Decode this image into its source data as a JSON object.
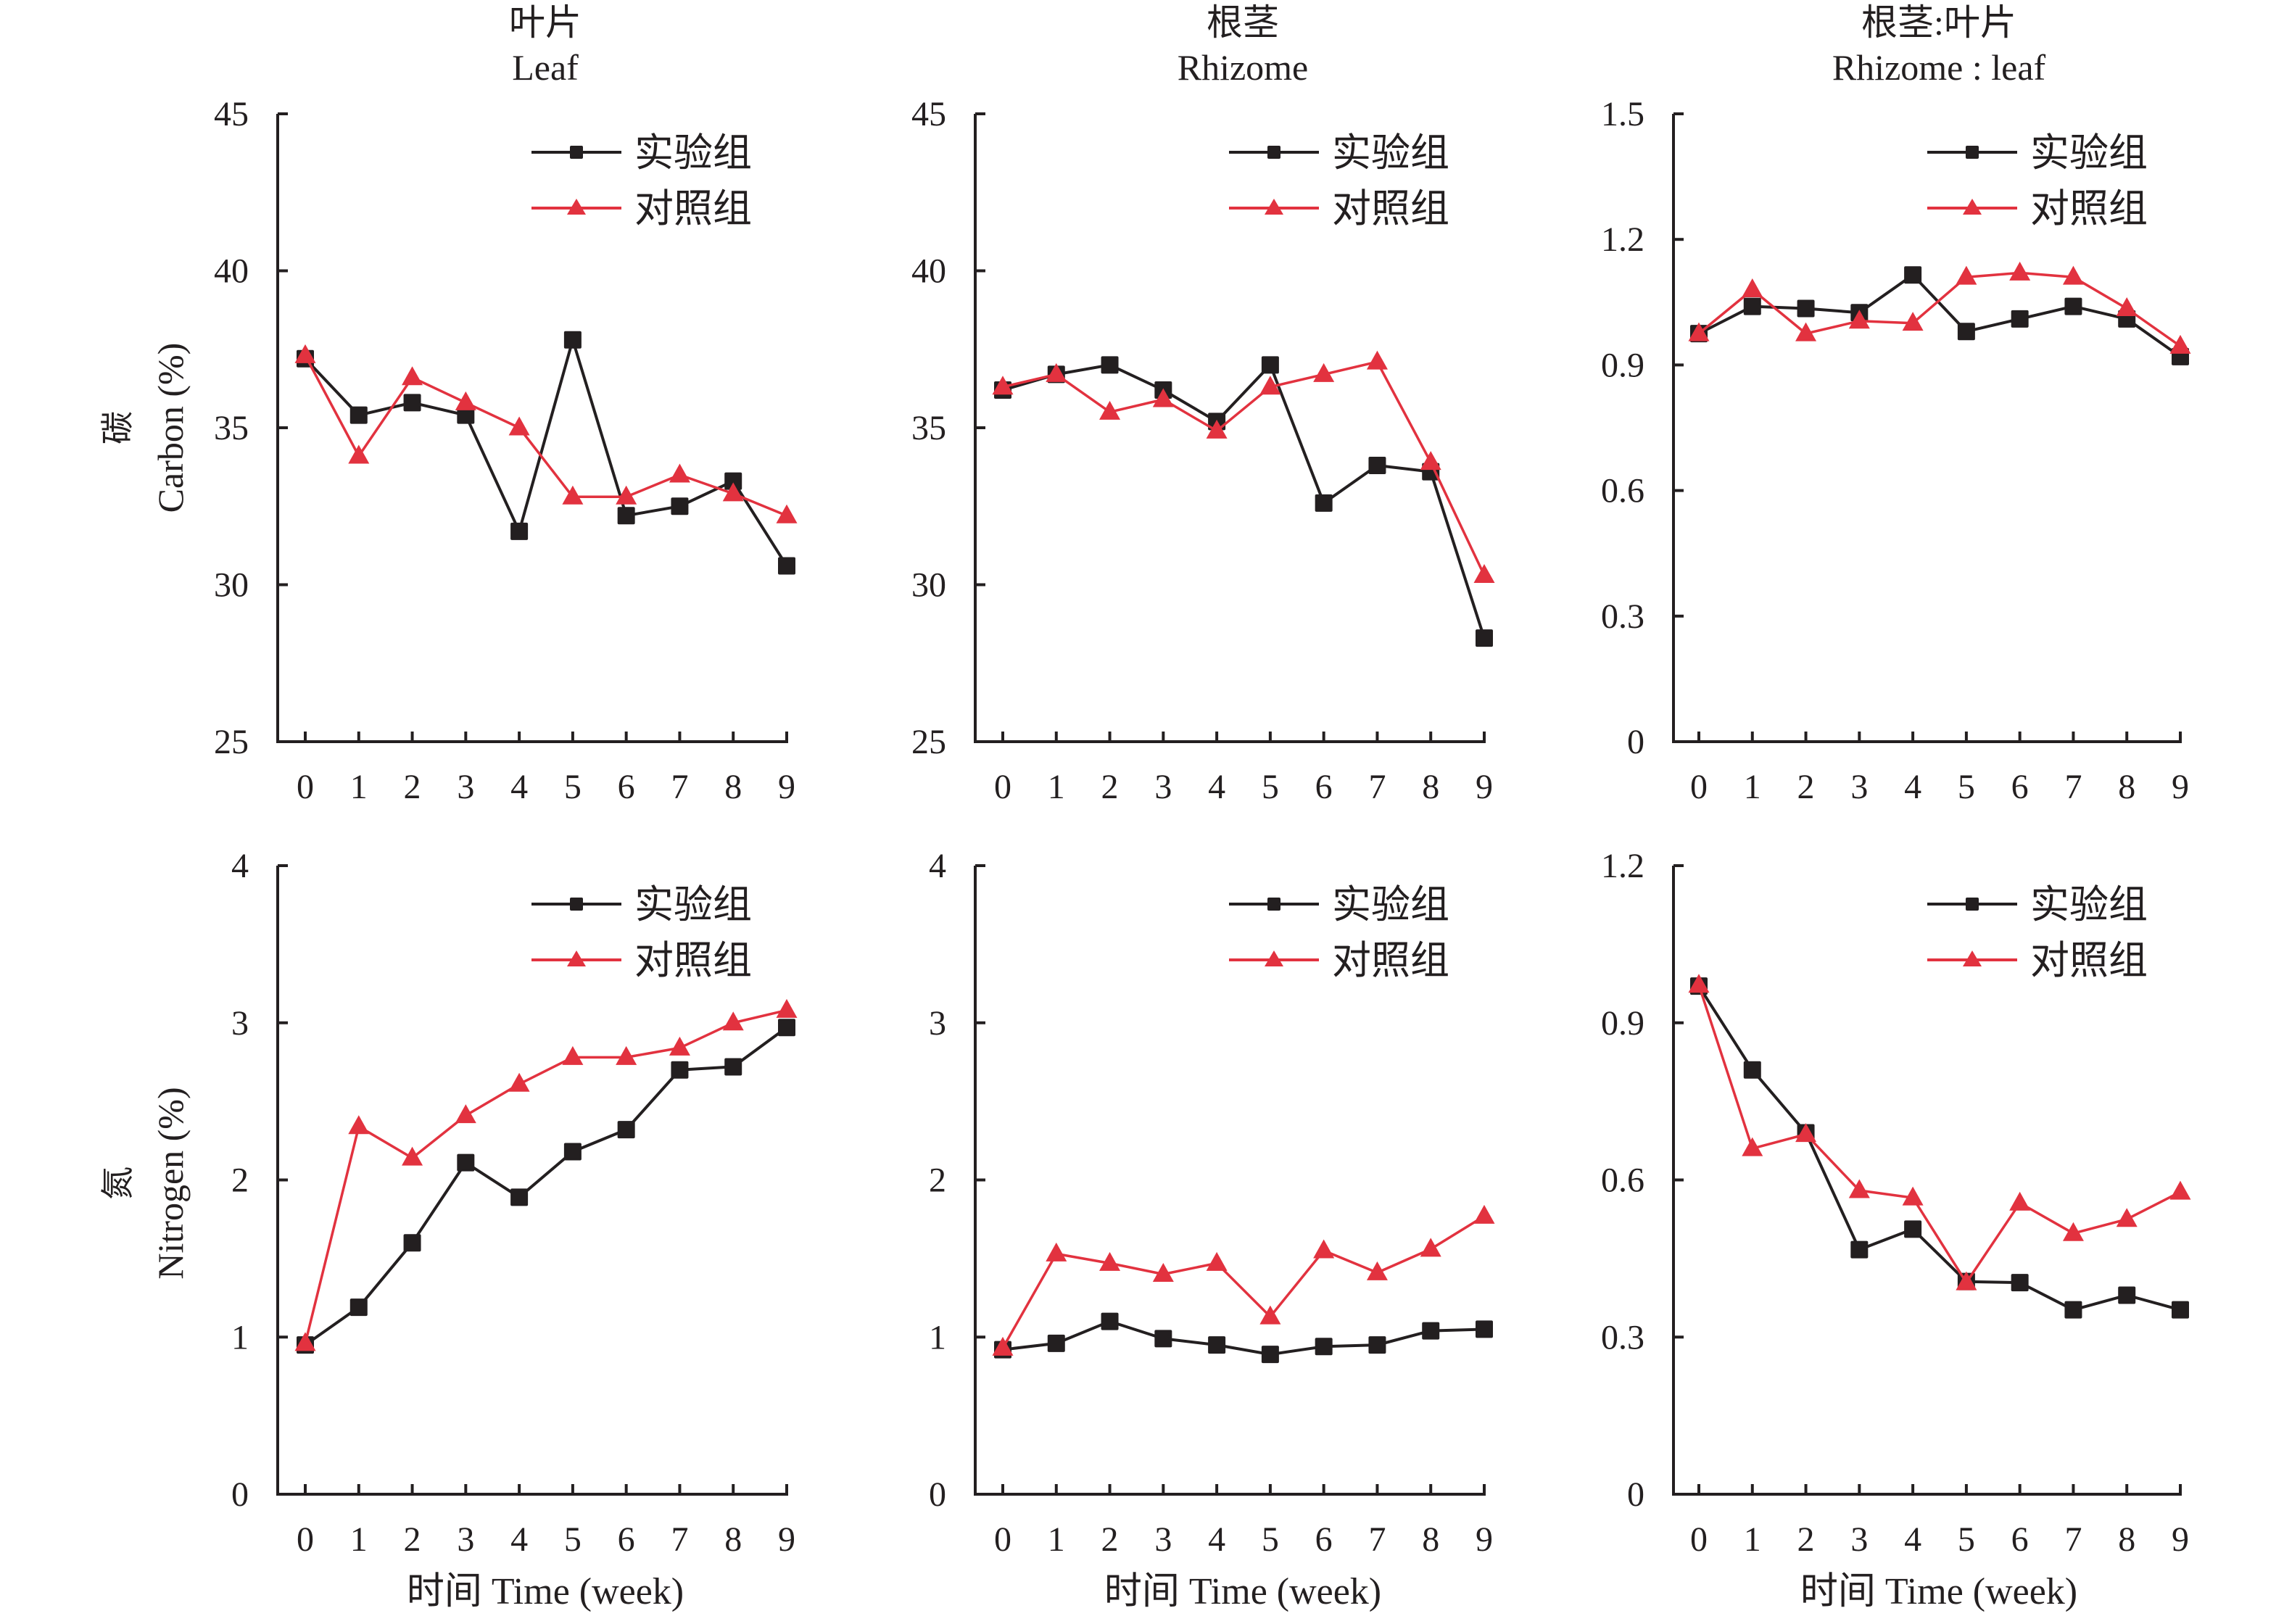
{
  "figure": {
    "row_titles": [
      {
        "zh": "碳",
        "en": "Carbon (%)"
      },
      {
        "zh": "氮",
        "en": "Nitrogen (%)"
      }
    ],
    "column_titles": [
      {
        "zh": "叶片",
        "en": "Leaf"
      },
      {
        "zh": "根茎",
        "en": "Rhizome"
      },
      {
        "zh": "根茎:叶片",
        "en": "Rhizome : leaf"
      }
    ],
    "xaxis_title": "时间 Time (week)",
    "colors": {
      "experimental": "#231f20",
      "control": "#e2323f",
      "axis": "#231f20"
    }
  },
  "chart_data": [
    {
      "type": "line",
      "title": "叶片 Leaf",
      "ylabel": "碳 Carbon (%)",
      "xlabel": "",
      "x": [
        0,
        1,
        2,
        3,
        4,
        5,
        6,
        7,
        8,
        9
      ],
      "x_tick_labels": [
        "0",
        "1",
        "2",
        "3",
        "4",
        "5",
        "6",
        "7",
        "8",
        "9"
      ],
      "ylim": [
        25,
        45
      ],
      "y_ticks": [
        25,
        30,
        35,
        40,
        45
      ],
      "y_tick_labels": [
        "25",
        "30",
        "35",
        "40",
        "45"
      ],
      "legend_position": "top-right",
      "grid": false,
      "series": [
        {
          "name": "实验组",
          "marker": "square",
          "values": [
            37.2,
            35.4,
            35.8,
            35.4,
            31.7,
            37.8,
            32.2,
            32.5,
            33.3,
            30.6
          ]
        },
        {
          "name": "对照组",
          "marker": "triangle",
          "values": [
            37.3,
            34.1,
            36.6,
            35.8,
            35.0,
            32.8,
            32.8,
            33.5,
            32.9,
            32.2
          ]
        }
      ]
    },
    {
      "type": "line",
      "title": "根茎 Rhizome",
      "ylabel": "",
      "xlabel": "",
      "x": [
        0,
        1,
        2,
        3,
        4,
        5,
        6,
        7,
        8,
        9
      ],
      "x_tick_labels": [
        "0",
        "1",
        "2",
        "3",
        "4",
        "5",
        "6",
        "7",
        "8",
        "9"
      ],
      "ylim": [
        25,
        45
      ],
      "y_ticks": [
        25,
        30,
        35,
        40,
        45
      ],
      "y_tick_labels": [
        "25",
        "30",
        "35",
        "40",
        "45"
      ],
      "legend_position": "top-right",
      "grid": false,
      "series": [
        {
          "name": "实验组",
          "marker": "square",
          "values": [
            36.2,
            36.7,
            37.0,
            36.2,
            35.2,
            37.0,
            32.6,
            33.8,
            33.6,
            28.3
          ]
        },
        {
          "name": "对照组",
          "marker": "triangle",
          "values": [
            36.3,
            36.7,
            35.5,
            35.9,
            34.9,
            36.3,
            36.7,
            37.1,
            33.9,
            30.3
          ]
        }
      ]
    },
    {
      "type": "line",
      "title": "根茎:叶片 Rhizome : leaf",
      "ylabel": "",
      "xlabel": "",
      "x": [
        0,
        1,
        2,
        3,
        4,
        5,
        6,
        7,
        8,
        9
      ],
      "x_tick_labels": [
        "0",
        "1",
        "2",
        "3",
        "4",
        "5",
        "6",
        "7",
        "8",
        "9"
      ],
      "ylim": [
        0,
        1.5
      ],
      "y_ticks": [
        0,
        0.3,
        0.6,
        0.9,
        1.2,
        1.5
      ],
      "y_tick_labels": [
        "0",
        "0.3",
        "0.6",
        "0.9",
        "1.2",
        "1.5"
      ],
      "legend_position": "top-right",
      "grid": false,
      "series": [
        {
          "name": "实验组",
          "marker": "square",
          "values": [
            0.975,
            1.04,
            1.035,
            1.025,
            1.115,
            0.98,
            1.01,
            1.04,
            1.01,
            0.92
          ]
        },
        {
          "name": "对照组",
          "marker": "triangle",
          "values": [
            0.975,
            1.08,
            0.975,
            1.005,
            1.0,
            1.11,
            1.12,
            1.11,
            1.035,
            0.945
          ]
        }
      ]
    },
    {
      "type": "line",
      "title": "",
      "ylabel": "氮 Nitrogen (%)",
      "xlabel": "时间 Time (week)",
      "x": [
        0,
        1,
        2,
        3,
        4,
        5,
        6,
        7,
        8,
        9
      ],
      "x_tick_labels": [
        "0",
        "1",
        "2",
        "3",
        "4",
        "5",
        "6",
        "7",
        "8",
        "9"
      ],
      "ylim": [
        0,
        4
      ],
      "y_ticks": [
        0,
        1,
        2,
        3,
        4
      ],
      "y_tick_labels": [
        "0",
        "1",
        "2",
        "3",
        "4"
      ],
      "legend_position": "top-right",
      "grid": false,
      "series": [
        {
          "name": "实验组",
          "marker": "square",
          "values": [
            0.95,
            1.19,
            1.6,
            2.11,
            1.89,
            2.18,
            2.32,
            2.7,
            2.72,
            2.97
          ]
        },
        {
          "name": "对照组",
          "marker": "triangle",
          "values": [
            0.96,
            2.34,
            2.14,
            2.41,
            2.61,
            2.78,
            2.78,
            2.84,
            3.0,
            3.08
          ]
        }
      ]
    },
    {
      "type": "line",
      "title": "",
      "ylabel": "",
      "xlabel": "时间 Time (week)",
      "x": [
        0,
        1,
        2,
        3,
        4,
        5,
        6,
        7,
        8,
        9
      ],
      "x_tick_labels": [
        "0",
        "1",
        "2",
        "3",
        "4",
        "5",
        "6",
        "7",
        "8",
        "9"
      ],
      "ylim": [
        0,
        4
      ],
      "y_ticks": [
        0,
        1,
        2,
        3,
        4
      ],
      "y_tick_labels": [
        "0",
        "1",
        "2",
        "3",
        "4"
      ],
      "legend_position": "top-right",
      "grid": false,
      "series": [
        {
          "name": "实验组",
          "marker": "square",
          "values": [
            0.92,
            0.96,
            1.1,
            0.99,
            0.95,
            0.89,
            0.94,
            0.95,
            1.04,
            1.05
          ]
        },
        {
          "name": "对照组",
          "marker": "triangle",
          "values": [
            0.93,
            1.53,
            1.47,
            1.4,
            1.47,
            1.13,
            1.55,
            1.41,
            1.56,
            1.77
          ]
        }
      ]
    },
    {
      "type": "line",
      "title": "",
      "ylabel": "",
      "xlabel": "时间 Time (week)",
      "x": [
        0,
        1,
        2,
        3,
        4,
        5,
        6,
        7,
        8,
        9
      ],
      "x_tick_labels": [
        "0",
        "1",
        "2",
        "3",
        "4",
        "5",
        "6",
        "7",
        "8",
        "9"
      ],
      "ylim": [
        0,
        1.2
      ],
      "y_ticks": [
        0,
        0.3,
        0.6,
        0.9,
        1.2
      ],
      "y_tick_labels": [
        "0",
        "0.3",
        "0.6",
        "0.9",
        "1.2"
      ],
      "legend_position": "top-right",
      "grid": false,
      "series": [
        {
          "name": "实验组",
          "marker": "square",
          "values": [
            0.97,
            0.81,
            0.69,
            0.467,
            0.506,
            0.406,
            0.404,
            0.352,
            0.38,
            0.352
          ]
        },
        {
          "name": "对照组",
          "marker": "triangle",
          "values": [
            0.972,
            0.66,
            0.687,
            0.58,
            0.566,
            0.404,
            0.556,
            0.498,
            0.525,
            0.577
          ]
        }
      ]
    }
  ]
}
